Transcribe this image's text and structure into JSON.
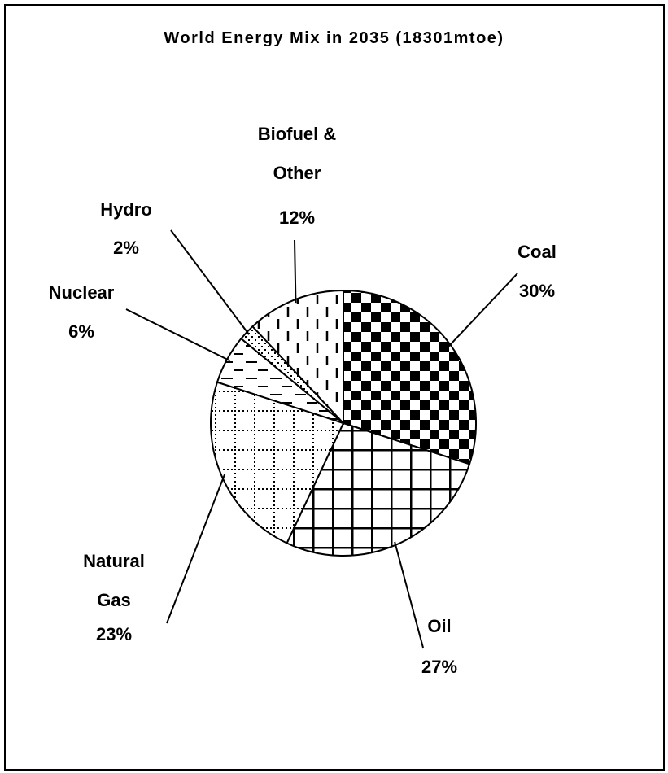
{
  "chart_data": {
    "type": "pie",
    "title": "World Energy Mix in 2035 (18301mtoe)",
    "categories": [
      "Coal",
      "Oil",
      "Natural Gas",
      "Nuclear",
      "Hydro",
      "Biofuel & Other"
    ],
    "values": [
      30,
      27,
      23,
      6,
      2,
      12
    ],
    "value_labels": [
      "30%",
      "27%",
      "23%",
      "6%",
      "2%",
      "12%"
    ]
  }
}
